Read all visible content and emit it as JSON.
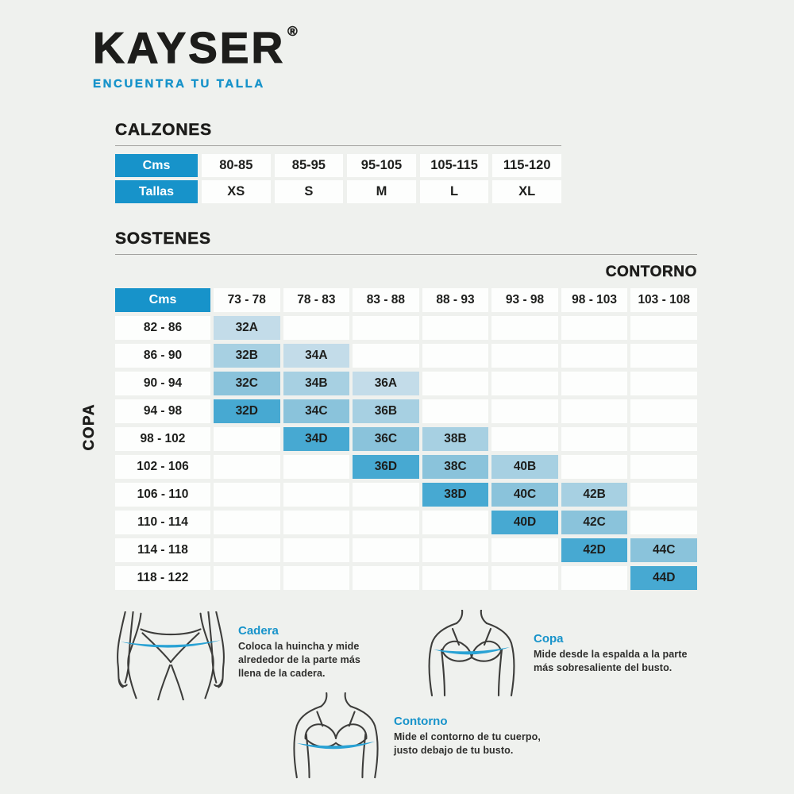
{
  "brand": {
    "logo_text": "KAYSER",
    "registered_mark": "®",
    "tagline": "ENCUENTRA TU TALLA"
  },
  "colors": {
    "accent_blue": "#1793ca",
    "band_blue": "#29a2d4",
    "cup_a_fill": "#c3dce9",
    "cup_b_fill": "#a7d0e2",
    "cup_c_fill": "#8ac3db",
    "cup_d_fill": "#47a9d2",
    "cell_white": "#fdfefd",
    "page_background": "#eff1ee",
    "text_dark": "#1d1e1c"
  },
  "calzones": {
    "title": "CALZONES",
    "rows": [
      {
        "header": "Cms",
        "cells": [
          "80-85",
          "85-95",
          "95-105",
          "105-115",
          "115-120"
        ]
      },
      {
        "header": "Tallas",
        "cells": [
          "XS",
          "S",
          "M",
          "L",
          "XL"
        ]
      }
    ]
  },
  "sostenes": {
    "title": "SOSTENES",
    "contorno_label": "CONTORNO",
    "copa_label": "COPA",
    "corner_label": "Cms",
    "contorno_columns": [
      "73 - 78",
      "78 - 83",
      "83 - 88",
      "88 - 93",
      "93 - 98",
      "98 - 103",
      "103 - 108"
    ],
    "rows": [
      {
        "copa_range": "82 - 86",
        "cells": [
          "32A",
          "",
          "",
          "",
          "",
          "",
          ""
        ]
      },
      {
        "copa_range": "86 - 90",
        "cells": [
          "32B",
          "34A",
          "",
          "",
          "",
          "",
          ""
        ]
      },
      {
        "copa_range": "90 - 94",
        "cells": [
          "32C",
          "34B",
          "36A",
          "",
          "",
          "",
          ""
        ]
      },
      {
        "copa_range": "94 - 98",
        "cells": [
          "32D",
          "34C",
          "36B",
          "",
          "",
          "",
          ""
        ]
      },
      {
        "copa_range": "98 - 102",
        "cells": [
          "",
          "34D",
          "36C",
          "38B",
          "",
          "",
          ""
        ]
      },
      {
        "copa_range": "102 - 106",
        "cells": [
          "",
          "",
          "36D",
          "38C",
          "40B",
          "",
          ""
        ]
      },
      {
        "copa_range": "106 - 110",
        "cells": [
          "",
          "",
          "",
          "38D",
          "40C",
          "42B",
          ""
        ]
      },
      {
        "copa_range": "110 - 114",
        "cells": [
          "",
          "",
          "",
          "",
          "40D",
          "42C",
          ""
        ]
      },
      {
        "copa_range": "114 - 118",
        "cells": [
          "",
          "",
          "",
          "",
          "",
          "42D",
          "44C"
        ]
      },
      {
        "copa_range": "118 - 122",
        "cells": [
          "",
          "",
          "",
          "",
          "",
          "",
          "44D"
        ]
      }
    ]
  },
  "guides": {
    "cadera": {
      "title": "Cadera",
      "description": "Coloca la huincha y mide alrededor de la parte más llena de la cadera."
    },
    "copa": {
      "title": "Copa",
      "description": "Mide desde la espalda a la parte más sobresaliente del busto."
    },
    "contorno": {
      "title": "Contorno",
      "description": "Mide el contorno de tu cuerpo, justo debajo de tu busto."
    }
  }
}
